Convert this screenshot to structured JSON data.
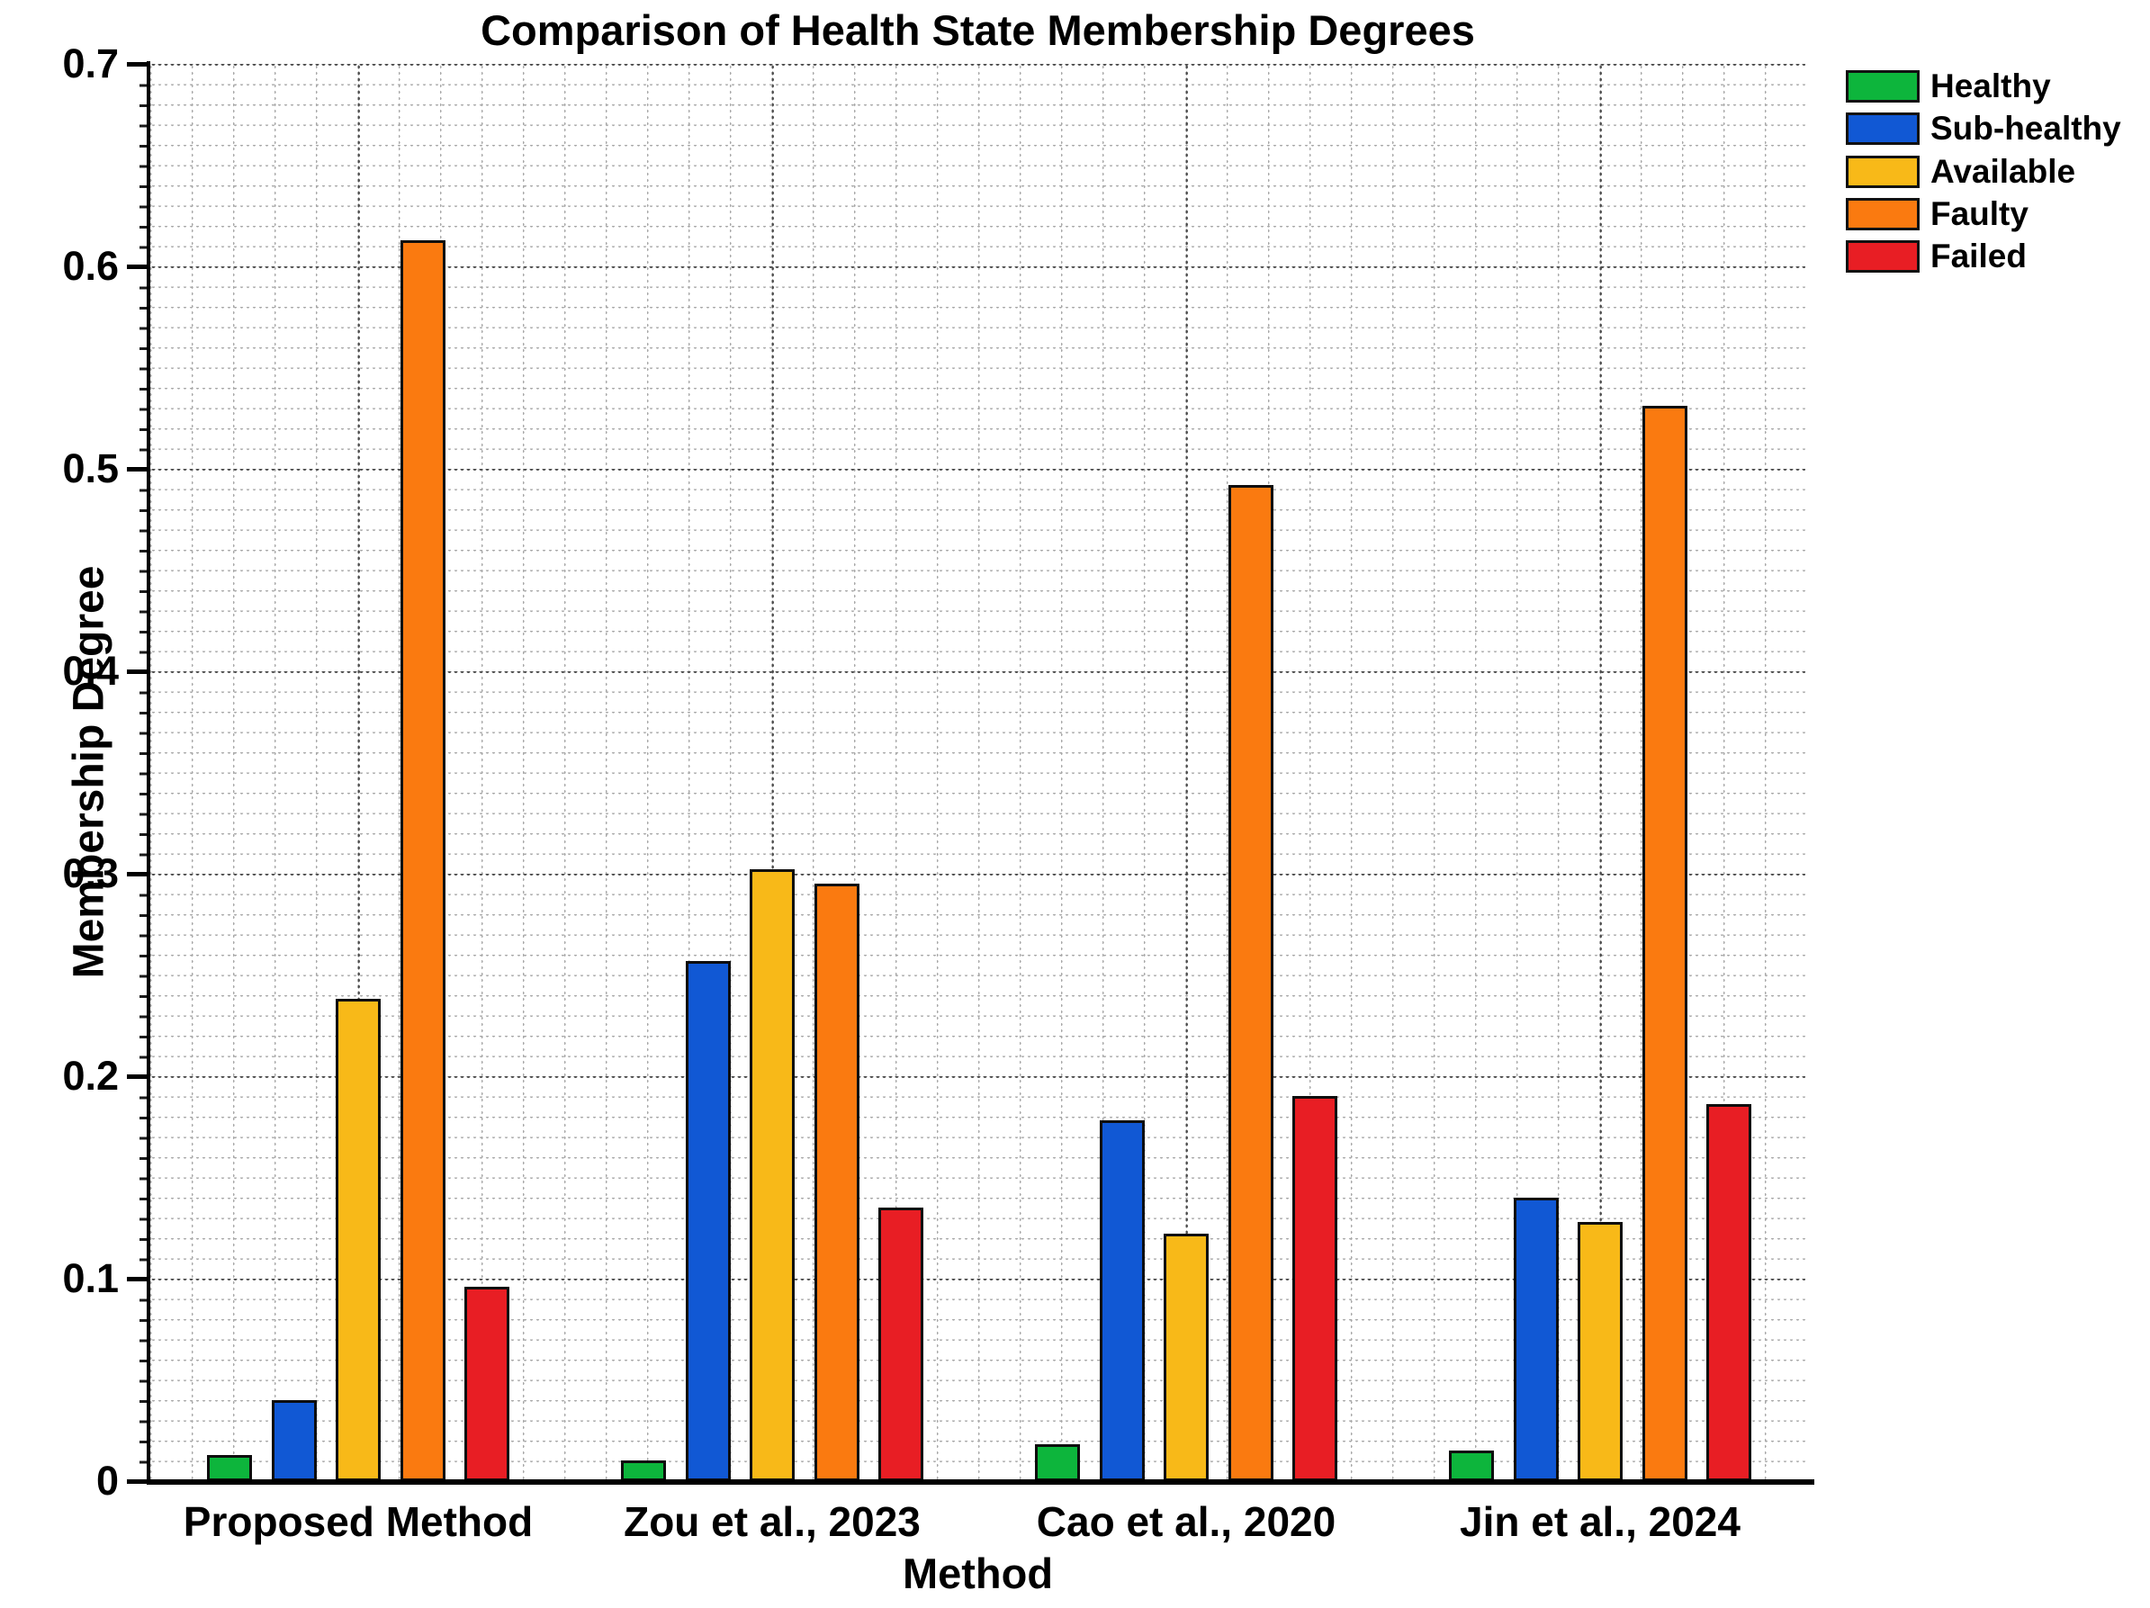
{
  "figure": {
    "title": "Comparison of Health State Membership Degrees",
    "xlabel": "Method",
    "ylabel": "Membership Degree"
  },
  "chart_data": {
    "type": "bar",
    "title": "Comparison of Health State Membership Degrees",
    "xlabel": "Method",
    "ylabel": "Membership Degree",
    "categories": [
      "Proposed Method",
      "Zou et al., 2023",
      "Cao et al., 2020",
      "Jin et al., 2024"
    ],
    "series": [
      {
        "name": "Healthy",
        "color": "#0db53c",
        "values": [
          0.013,
          0.01,
          0.018,
          0.015
        ]
      },
      {
        "name": "Sub-healthy",
        "color": "#1158d4",
        "values": [
          0.04,
          0.257,
          0.178,
          0.14
        ]
      },
      {
        "name": "Available",
        "color": "#f8b918",
        "values": [
          0.238,
          0.302,
          0.122,
          0.128
        ]
      },
      {
        "name": "Faulty",
        "color": "#fa7a10",
        "values": [
          0.613,
          0.295,
          0.492,
          0.531
        ]
      },
      {
        "name": "Failed",
        "color": "#e81e24",
        "values": [
          0.096,
          0.135,
          0.19,
          0.186
        ]
      }
    ],
    "ylim": [
      0,
      0.7
    ],
    "yticks": [
      "0",
      "0.1",
      "0.2",
      "0.3",
      "0.4",
      "0.5",
      "0.6",
      "0.7"
    ],
    "grid": "dotted major and minor grid, both axes",
    "legend_position": "outside top-right",
    "bar_edge_color": "#0d0d0d"
  }
}
